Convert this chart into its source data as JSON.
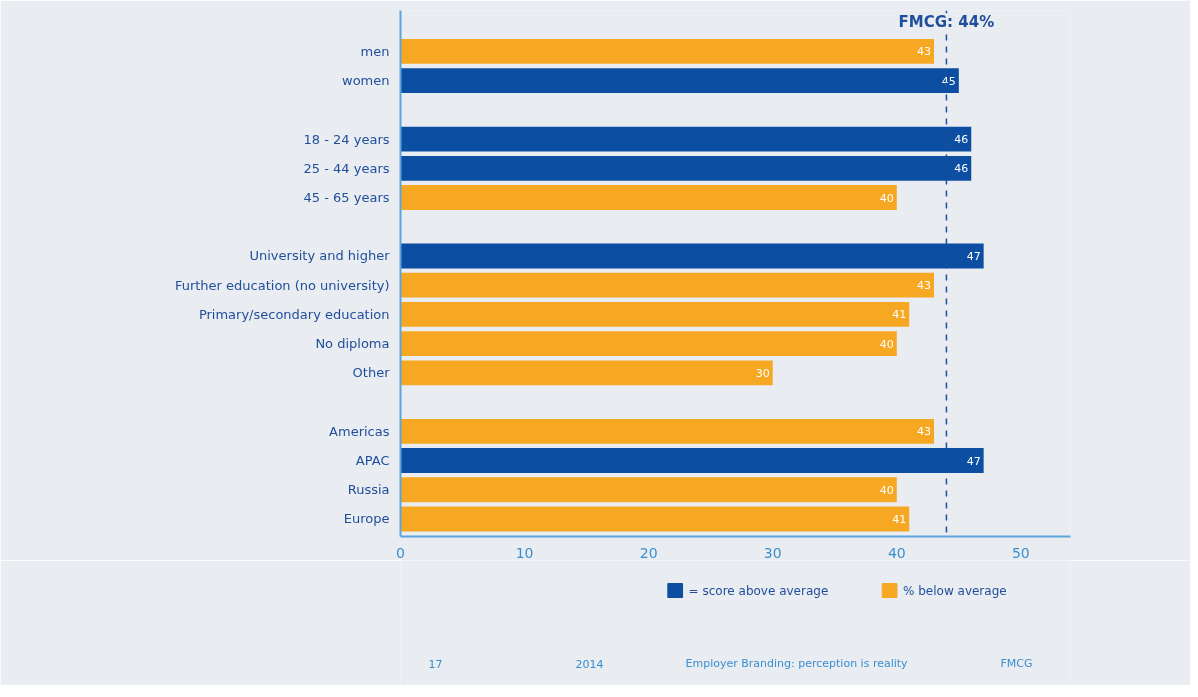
{
  "chart_data": {
    "type": "bar",
    "orientation": "horizontal",
    "categories": [
      "men",
      "women",
      null,
      "18 - 24 years",
      "25 - 44 years",
      "45 - 65 years",
      null,
      "University and higher",
      "Further education (no university)",
      "Primary/secondary education",
      "No diploma",
      "Other",
      null,
      "Americas",
      "APAC",
      "Russia",
      "Europe"
    ],
    "series": [
      {
        "name": "= score above average",
        "color": "#0b4ea2",
        "values": [
          null,
          45,
          null,
          46,
          46,
          null,
          null,
          47,
          null,
          null,
          null,
          null,
          null,
          null,
          47,
          null,
          null
        ]
      },
      {
        "name": "% below average",
        "color": "#f7a823",
        "values": [
          43,
          null,
          null,
          null,
          null,
          40,
          null,
          null,
          43,
          41,
          40,
          30,
          null,
          43,
          null,
          40,
          41
        ]
      }
    ],
    "xlim": [
      0,
      54
    ],
    "xticks": [
      0,
      10,
      20,
      30,
      40,
      50
    ],
    "data_labels": true,
    "grid": false,
    "legend": "bottom",
    "ref_lines": [
      {
        "axis": "x",
        "value": 44,
        "label": "FMCG: 44%",
        "line_style": "dashed",
        "color": "#1f4e9c"
      }
    ],
    "annotations": [
      "17",
      "2014",
      "Employer Branding: perception is reality",
      "FMCG"
    ]
  }
}
